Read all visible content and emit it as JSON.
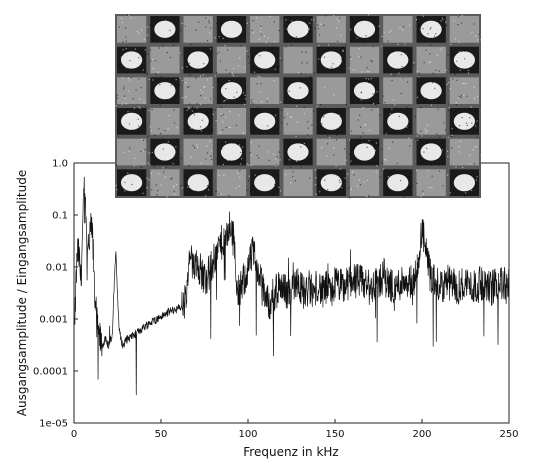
{
  "chart_data": {
    "type": "line",
    "title": "",
    "xlabel": "Frequenz in kHz",
    "ylabel": "Ausgangsamplitude / Eingangsamplitude",
    "xlim": [
      0,
      250
    ],
    "ylim": [
      1e-05,
      1.0
    ],
    "yscale": "log",
    "grid": false,
    "legend": "none",
    "x_ticks": [
      {
        "value": 0,
        "label": "0"
      },
      {
        "value": 50,
        "label": "50"
      },
      {
        "value": 100,
        "label": "100"
      },
      {
        "value": 150,
        "label": "150"
      },
      {
        "value": 200,
        "label": "200"
      },
      {
        "value": 250,
        "label": "250"
      }
    ],
    "y_ticks": [
      {
        "value": 1.0,
        "label": "1.0"
      },
      {
        "value": 0.1,
        "label": "0.1"
      },
      {
        "value": 0.01,
        "label": "0.01"
      },
      {
        "value": 0.001,
        "label": "0.001"
      },
      {
        "value": 0.0001,
        "label": "0.0001"
      },
      {
        "value": 1e-05,
        "label": "1e-05"
      }
    ],
    "line_color": "#111111",
    "inset_image": "metamaterial-lattice-photo",
    "series": [
      {
        "x": [
          0.5,
          1,
          2,
          3,
          4,
          5,
          6,
          7,
          8,
          9,
          10,
          11,
          12,
          13,
          14,
          15,
          16,
          18,
          20,
          22,
          23,
          24,
          25,
          26,
          28,
          30,
          35,
          40,
          45,
          50,
          55,
          60,
          63,
          65,
          66,
          67,
          68,
          70,
          72,
          75,
          78,
          80,
          82,
          85,
          88,
          90,
          92,
          93,
          94,
          95,
          97,
          100,
          103,
          105,
          107,
          108,
          110,
          112,
          115,
          118,
          120,
          122,
          125,
          128,
          130,
          133,
          135,
          138,
          140,
          143,
          145,
          148,
          150,
          155,
          160,
          165,
          170,
          175,
          178,
          180,
          185,
          190,
          195,
          198,
          200,
          202,
          205,
          210,
          215,
          220,
          225,
          230,
          235,
          240,
          245,
          250
        ],
        "y": [
          0.0006,
          0.004,
          0.02,
          0.015,
          0.005,
          0.06,
          0.4,
          0.05,
          0.02,
          0.03,
          0.08,
          0.02,
          0.003,
          0.001,
          0.0005,
          0.0004,
          0.0003,
          0.0004,
          0.0003,
          0.0005,
          0.004,
          0.02,
          0.003,
          0.0006,
          0.0003,
          0.0004,
          0.0005,
          0.0007,
          0.0009,
          0.0011,
          0.0014,
          0.0016,
          0.0018,
          0.003,
          0.01,
          0.02,
          0.008,
          0.015,
          0.01,
          0.006,
          0.008,
          0.012,
          0.02,
          0.03,
          0.04,
          0.06,
          0.03,
          0.01,
          0.004,
          0.003,
          0.005,
          0.009,
          0.02,
          0.01,
          0.006,
          0.004,
          0.003,
          0.002,
          0.003,
          0.004,
          0.005,
          0.003,
          0.004,
          0.006,
          0.004,
          0.003,
          0.004,
          0.003,
          0.005,
          0.003,
          0.004,
          0.003,
          0.005,
          0.004,
          0.006,
          0.005,
          0.004,
          0.005,
          0.007,
          0.005,
          0.004,
          0.006,
          0.005,
          0.01,
          0.06,
          0.02,
          0.006,
          0.004,
          0.005,
          0.004,
          0.005,
          0.004,
          0.005,
          0.004,
          0.005,
          0.004
        ]
      }
    ]
  }
}
